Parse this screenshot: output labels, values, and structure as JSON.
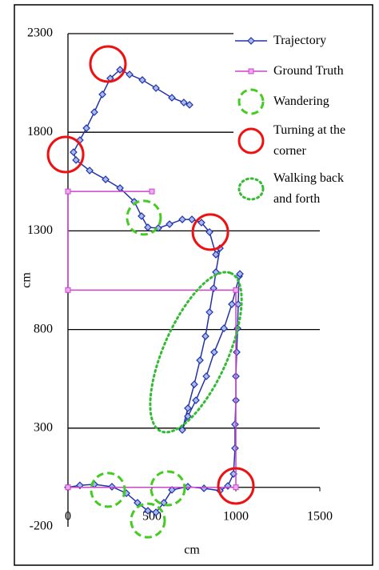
{
  "chart_data": {
    "type": "line",
    "xlabel": "cm",
    "ylabel": "cm",
    "xlim": [
      0,
      1500
    ],
    "xticks": [
      0,
      500,
      1000,
      1500
    ],
    "ylim": [
      -200,
      2300
    ],
    "yticks": [
      -200,
      300,
      800,
      1300,
      1800,
      2300
    ],
    "grid": true,
    "legend": "upper right",
    "series": [
      {
        "name": "Trajectory",
        "color": "#2233aa",
        "marker": "diamond",
        "x": [
          0,
          71,
          157,
          262,
          348,
          414,
          476,
          524,
          571,
          619,
          714,
          810,
          905,
          952,
          986,
          995,
          995,
          1000,
          1000,
          1005,
          1010,
          1014,
          1019,
          1024,
          976,
          929,
          871,
          824,
          762,
          714,
          681,
          714,
          752,
          786,
          819,
          843,
          867,
          881,
          905,
          881,
          843,
          795,
          738,
          681,
          605,
          538,
          476,
          438,
          395,
          310,
          224,
          129,
          48,
          33,
          71,
          110,
          157,
          205,
          252,
          310,
          367,
          443,
          524,
          619,
          690,
          724
        ],
        "values": [
          0,
          10,
          15,
          3,
          -30,
          -78,
          -119,
          -127,
          -78,
          -13,
          3,
          -5,
          -17,
          7,
          68,
          198,
          319,
          441,
          563,
          685,
          806,
          928,
          1070,
          1082,
          928,
          806,
          685,
          563,
          441,
          360,
          291,
          401,
          522,
          644,
          766,
          888,
          1009,
          1091,
          1212,
          1180,
          1294,
          1342,
          1358,
          1358,
          1334,
          1314,
          1318,
          1375,
          1448,
          1517,
          1561,
          1606,
          1659,
          1699,
          1760,
          1821,
          1902,
          1992,
          2073,
          2117,
          2093,
          2065,
          2024,
          1975,
          1951,
          1939
        ]
      },
      {
        "name": "Ground Truth",
        "color": "#cc44cc",
        "marker": "square",
        "x": [
          500,
          0,
          0,
          1000,
          1000,
          0
        ],
        "values": [
          1500,
          1500,
          1000,
          1000,
          0,
          0
        ]
      },
      {
        "name": "Wandering",
        "color": "#44cc22",
        "marker": "dashed-circle",
        "x": [
          452,
          238,
          595,
          476
        ],
        "values": [
          1367,
          -13,
          -5,
          -168
        ]
      },
      {
        "name": "Turning at the corner",
        "color": "#ee1111",
        "marker": "circle",
        "x": [
          238,
          -14,
          848,
          1000
        ],
        "values": [
          2146,
          1687,
          1294,
          7
        ]
      },
      {
        "name": "Walking back and forth",
        "color": "#33bb33",
        "marker": "dotted-ellipse",
        "x": [
          762
        ],
        "values": [
          685
        ]
      }
    ]
  }
}
